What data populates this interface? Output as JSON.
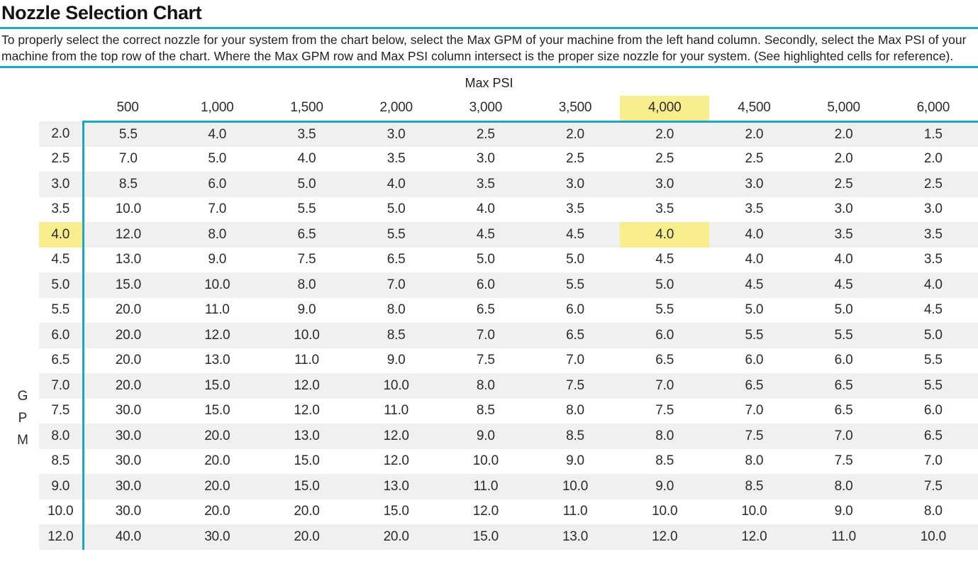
{
  "page": {
    "title": "Nozzle Selection Chart",
    "instructions": "To properly select the correct nozzle for your system from the chart below, select the Max GPM of your machine from the left hand column. Secondly, select the Max PSI of your machine from the top row of the chart. Where the Max GPM row and Max PSI column intersect is the proper size nozzle for your system. (See highlighted cells for reference)."
  },
  "colors": {
    "accent_teal": "#1CA7C4",
    "highlight_yellow": "#F9EE8E",
    "row_stripe_gray": "#F0F0F0",
    "text_dark": "#231F20"
  },
  "chart_data": {
    "type": "table",
    "title": "Nozzle Selection Chart",
    "column_group_label": "Max PSI",
    "row_group_label": "GPM",
    "columns": [
      "500",
      "1,000",
      "1,500",
      "2,000",
      "3,000",
      "3,500",
      "4,000",
      "4,500",
      "5,000",
      "6,000"
    ],
    "rows": [
      {
        "gpm": "2.0",
        "values": [
          "5.5",
          "4.0",
          "3.5",
          "3.0",
          "2.5",
          "2.0",
          "2.0",
          "2.0",
          "2.0",
          "1.5"
        ]
      },
      {
        "gpm": "2.5",
        "values": [
          "7.0",
          "5.0",
          "4.0",
          "3.5",
          "3.0",
          "2.5",
          "2.5",
          "2.5",
          "2.0",
          "2.0"
        ]
      },
      {
        "gpm": "3.0",
        "values": [
          "8.5",
          "6.0",
          "5.0",
          "4.0",
          "3.5",
          "3.0",
          "3.0",
          "3.0",
          "2.5",
          "2.5"
        ]
      },
      {
        "gpm": "3.5",
        "values": [
          "10.0",
          "7.0",
          "5.5",
          "5.0",
          "4.0",
          "3.5",
          "3.5",
          "3.5",
          "3.0",
          "3.0"
        ]
      },
      {
        "gpm": "4.0",
        "values": [
          "12.0",
          "8.0",
          "6.5",
          "5.5",
          "4.5",
          "4.5",
          "4.0",
          "4.0",
          "3.5",
          "3.5"
        ]
      },
      {
        "gpm": "4.5",
        "values": [
          "13.0",
          "9.0",
          "7.5",
          "6.5",
          "5.0",
          "5.0",
          "4.5",
          "4.0",
          "4.0",
          "3.5"
        ]
      },
      {
        "gpm": "5.0",
        "values": [
          "15.0",
          "10.0",
          "8.0",
          "7.0",
          "6.0",
          "5.5",
          "5.0",
          "4.5",
          "4.5",
          "4.0"
        ]
      },
      {
        "gpm": "5.5",
        "values": [
          "20.0",
          "11.0",
          "9.0",
          "8.0",
          "6.5",
          "6.0",
          "5.5",
          "5.0",
          "5.0",
          "4.5"
        ]
      },
      {
        "gpm": "6.0",
        "values": [
          "20.0",
          "12.0",
          "10.0",
          "8.5",
          "7.0",
          "6.5",
          "6.0",
          "5.5",
          "5.5",
          "5.0"
        ]
      },
      {
        "gpm": "6.5",
        "values": [
          "20.0",
          "13.0",
          "11.0",
          "9.0",
          "7.5",
          "7.0",
          "6.5",
          "6.0",
          "6.0",
          "5.5"
        ]
      },
      {
        "gpm": "7.0",
        "values": [
          "20.0",
          "15.0",
          "12.0",
          "10.0",
          "8.0",
          "7.5",
          "7.0",
          "6.5",
          "6.5",
          "5.5"
        ]
      },
      {
        "gpm": "7.5",
        "values": [
          "30.0",
          "15.0",
          "12.0",
          "11.0",
          "8.5",
          "8.0",
          "7.5",
          "7.0",
          "6.5",
          "6.0"
        ]
      },
      {
        "gpm": "8.0",
        "values": [
          "30.0",
          "20.0",
          "13.0",
          "12.0",
          "9.0",
          "8.5",
          "8.0",
          "7.5",
          "7.0",
          "6.5"
        ]
      },
      {
        "gpm": "8.5",
        "values": [
          "30.0",
          "20.0",
          "15.0",
          "12.0",
          "10.0",
          "9.0",
          "8.5",
          "8.0",
          "7.5",
          "7.0"
        ]
      },
      {
        "gpm": "9.0",
        "values": [
          "30.0",
          "20.0",
          "15.0",
          "13.0",
          "11.0",
          "10.0",
          "9.0",
          "8.5",
          "8.0",
          "7.5"
        ]
      },
      {
        "gpm": "10.0",
        "values": [
          "30.0",
          "20.0",
          "20.0",
          "15.0",
          "12.0",
          "11.0",
          "10.0",
          "10.0",
          "9.0",
          "8.0"
        ]
      },
      {
        "gpm": "12.0",
        "values": [
          "40.0",
          "30.0",
          "20.0",
          "20.0",
          "15.0",
          "13.0",
          "12.0",
          "12.0",
          "11.0",
          "10.0"
        ]
      }
    ],
    "highlight": {
      "column": "4,000",
      "row_gpm": "4.0",
      "column_index": 6,
      "row_index": 4,
      "value_at_intersection": "4.0"
    }
  }
}
